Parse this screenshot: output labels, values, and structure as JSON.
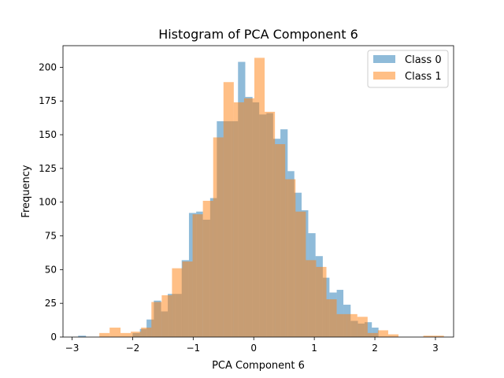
{
  "chart_data": {
    "type": "bar",
    "subtype": "histogram",
    "title": "Histogram of PCA Component 6",
    "xlabel": "PCA Component 6",
    "ylabel": "Frequency",
    "xlim": [
      -3.15,
      3.3
    ],
    "ylim": [
      0,
      216
    ],
    "xticks": [
      -3,
      -2,
      -1,
      0,
      1,
      2,
      3
    ],
    "yticks": [
      0,
      25,
      50,
      75,
      100,
      125,
      150,
      175,
      200
    ],
    "grid": false,
    "legend_position": "top-right",
    "series": [
      {
        "name": "Class 0",
        "color": "#1f77b4",
        "opacity": 0.5,
        "bins": [
          [
            -2.9,
            -2.77,
            1
          ],
          [
            -2.0,
            -1.88,
            3
          ],
          [
            -1.88,
            -1.77,
            6
          ],
          [
            -1.77,
            -1.65,
            13
          ],
          [
            -1.65,
            -1.53,
            27
          ],
          [
            -1.53,
            -1.42,
            19
          ],
          [
            -1.42,
            -1.3,
            32
          ],
          [
            -1.3,
            -1.19,
            32
          ],
          [
            -1.19,
            -1.07,
            57
          ],
          [
            -1.07,
            -0.95,
            92
          ],
          [
            -0.95,
            -0.84,
            93
          ],
          [
            -0.84,
            -0.72,
            87
          ],
          [
            -0.72,
            -0.61,
            103
          ],
          [
            -0.61,
            -0.49,
            160
          ],
          [
            -0.49,
            -0.37,
            160
          ],
          [
            -0.37,
            -0.26,
            160
          ],
          [
            -0.26,
            -0.14,
            204
          ],
          [
            -0.14,
            -0.02,
            178
          ],
          [
            -0.02,
            0.09,
            174
          ],
          [
            0.09,
            0.21,
            165
          ],
          [
            0.21,
            0.32,
            166
          ],
          [
            0.32,
            0.44,
            147
          ],
          [
            0.44,
            0.56,
            154
          ],
          [
            0.56,
            0.67,
            123
          ],
          [
            0.67,
            0.79,
            107
          ],
          [
            0.79,
            0.9,
            94
          ],
          [
            0.9,
            1.02,
            77
          ],
          [
            1.02,
            1.14,
            60
          ],
          [
            1.14,
            1.25,
            44
          ],
          [
            1.25,
            1.37,
            33
          ],
          [
            1.37,
            1.48,
            35
          ],
          [
            1.48,
            1.6,
            24
          ],
          [
            1.6,
            1.72,
            12
          ],
          [
            1.72,
            1.83,
            10
          ],
          [
            1.83,
            1.95,
            11
          ],
          [
            1.95,
            2.06,
            7
          ]
        ]
      },
      {
        "name": "Class 1",
        "color": "#ff7f0e",
        "opacity": 0.5,
        "bins": [
          [
            -2.55,
            -2.38,
            3
          ],
          [
            -2.38,
            -2.2,
            7
          ],
          [
            -2.2,
            -2.03,
            3
          ],
          [
            -2.03,
            -1.86,
            4
          ],
          [
            -1.86,
            -1.69,
            7
          ],
          [
            -1.69,
            -1.52,
            26
          ],
          [
            -1.52,
            -1.35,
            31
          ],
          [
            -1.35,
            -1.18,
            51
          ],
          [
            -1.18,
            -1.01,
            56
          ],
          [
            -1.01,
            -0.84,
            91
          ],
          [
            -0.84,
            -0.67,
            101
          ],
          [
            -0.67,
            -0.5,
            148
          ],
          [
            -0.5,
            -0.33,
            189
          ],
          [
            -0.33,
            -0.16,
            174
          ],
          [
            -0.16,
            0.01,
            177
          ],
          [
            0.01,
            0.18,
            207
          ],
          [
            0.18,
            0.35,
            167
          ],
          [
            0.35,
            0.52,
            143
          ],
          [
            0.52,
            0.69,
            117
          ],
          [
            0.69,
            0.86,
            93
          ],
          [
            0.86,
            1.03,
            57
          ],
          [
            1.03,
            1.2,
            52
          ],
          [
            1.2,
            1.37,
            28
          ],
          [
            1.37,
            1.54,
            17
          ],
          [
            1.54,
            1.71,
            17
          ],
          [
            1.71,
            1.88,
            15
          ],
          [
            1.88,
            2.05,
            3
          ],
          [
            2.05,
            2.22,
            5
          ],
          [
            2.22,
            2.39,
            2
          ],
          [
            2.8,
            2.97,
            1
          ],
          [
            2.97,
            3.14,
            1
          ]
        ]
      }
    ]
  }
}
